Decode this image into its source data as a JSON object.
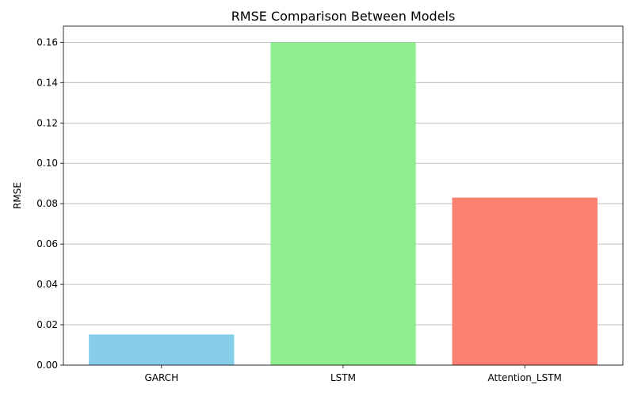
{
  "chart_data": {
    "type": "bar",
    "title": "RMSE Comparison Between Models",
    "xlabel": "",
    "ylabel": "RMSE",
    "categories": [
      "GARCH",
      "LSTM",
      "Attention_LSTM"
    ],
    "values": [
      0.0152,
      0.16,
      0.083
    ],
    "colors": [
      "#87ceeb",
      "#90ee90",
      "#fa8072"
    ],
    "ylim": [
      0,
      0.168
    ],
    "yticks": [
      0.0,
      0.02,
      0.04,
      0.06,
      0.08,
      0.1,
      0.12,
      0.14,
      0.16
    ],
    "ytick_labels": [
      "0.00",
      "0.02",
      "0.04",
      "0.06",
      "0.08",
      "0.10",
      "0.12",
      "0.14",
      "0.16"
    ],
    "grid": "y",
    "legend": "none"
  }
}
